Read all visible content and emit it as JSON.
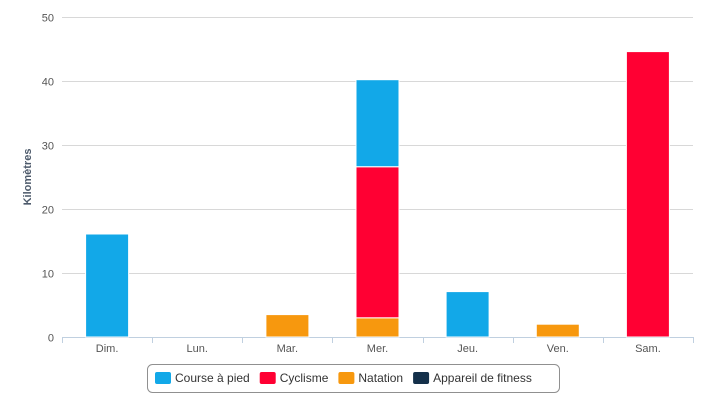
{
  "chart_data": {
    "type": "bar",
    "stacked": true,
    "title": "",
    "xlabel": "",
    "ylabel": "Kilomètres",
    "ylim": [
      0,
      50
    ],
    "yticks": [
      0,
      10,
      20,
      30,
      40,
      50
    ],
    "grid": true,
    "legend_position": "bottom-center",
    "categories": [
      "Dim.",
      "Lun.",
      "Mar.",
      "Mer.",
      "Jeu.",
      "Ven.",
      "Sam."
    ],
    "series": [
      {
        "name": "Course à pied",
        "color": "#12a8e8",
        "values": [
          16.1,
          0,
          0,
          13.6,
          7.1,
          0,
          0
        ]
      },
      {
        "name": "Cyclisme",
        "color": "#ff0033",
        "values": [
          0,
          0,
          0,
          23.6,
          0,
          0,
          44.6
        ]
      },
      {
        "name": "Natation",
        "color": "#f7980e",
        "values": [
          0,
          0,
          3.5,
          3.0,
          0,
          2.0,
          0
        ]
      },
      {
        "name": "Appareil de fitness",
        "color": "#14304a",
        "values": [
          0,
          0,
          0,
          0,
          0,
          0,
          0
        ]
      }
    ]
  }
}
